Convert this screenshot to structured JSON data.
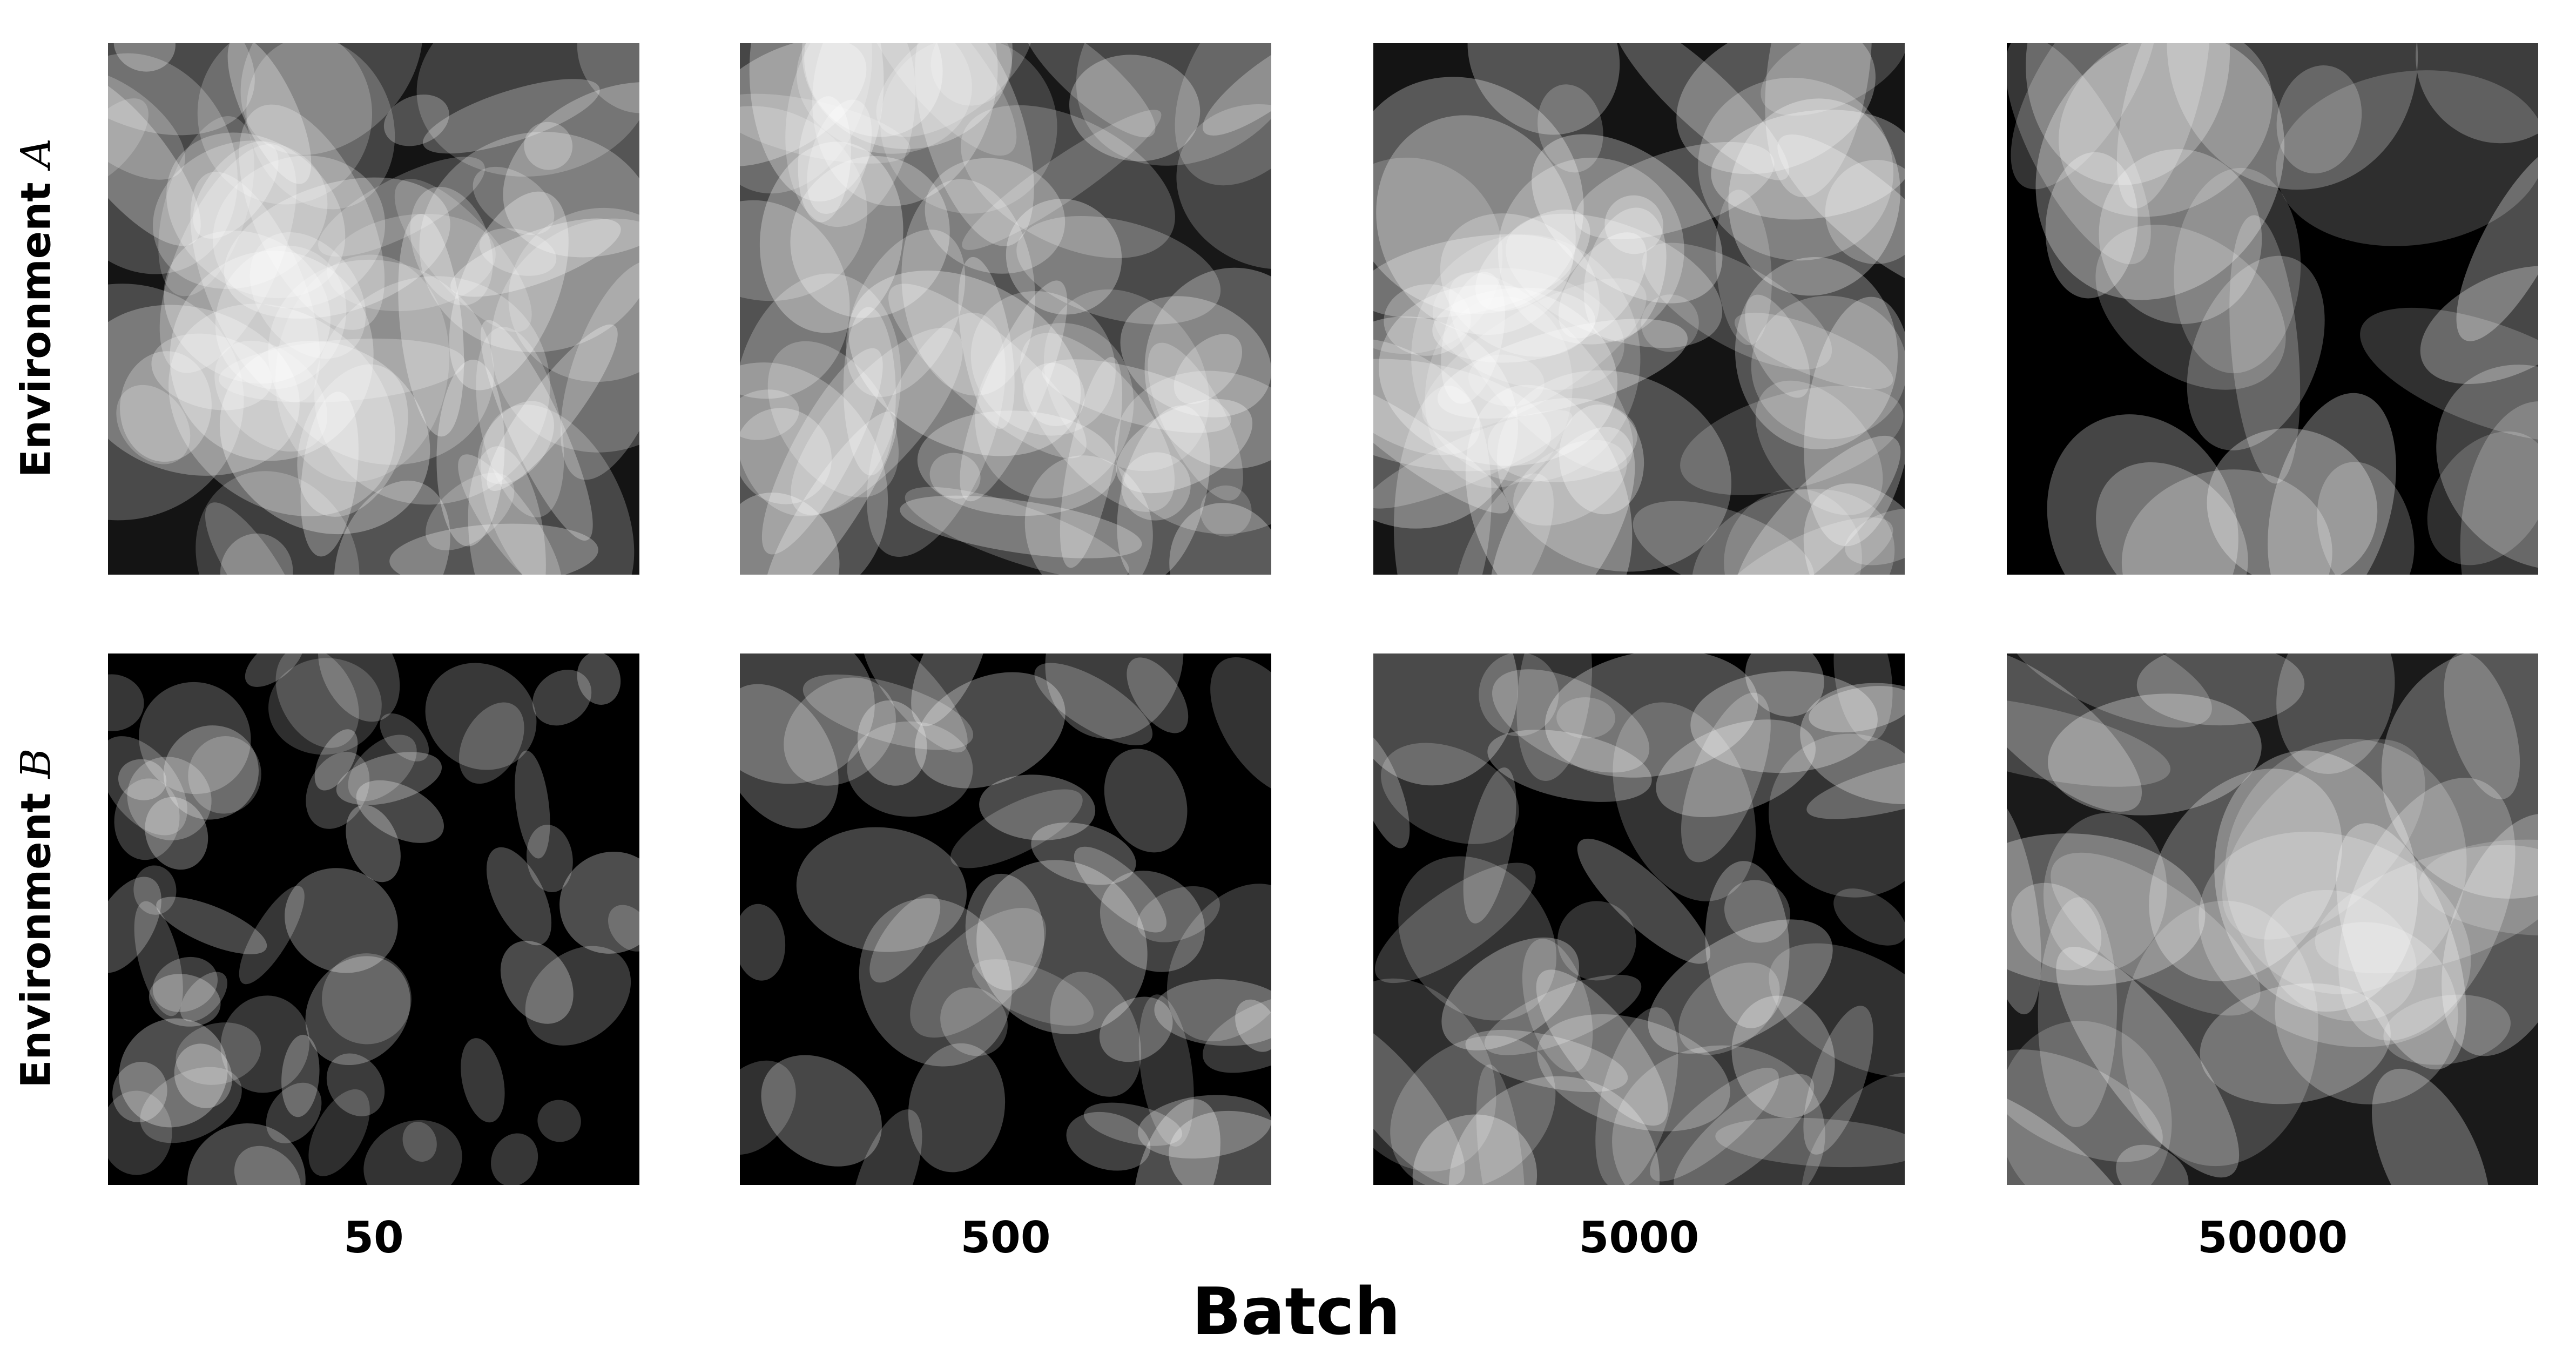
{
  "rows": [
    {
      "label_prefix": "Environment ",
      "label_letter": "A"
    },
    {
      "label_prefix": "Environment ",
      "label_letter": "B"
    }
  ],
  "columns": [
    "50",
    "500",
    "5000",
    "50000"
  ],
  "xlabel": "Batch",
  "panel_background": "#000000",
  "ellipse_fill": "#ffffff"
}
